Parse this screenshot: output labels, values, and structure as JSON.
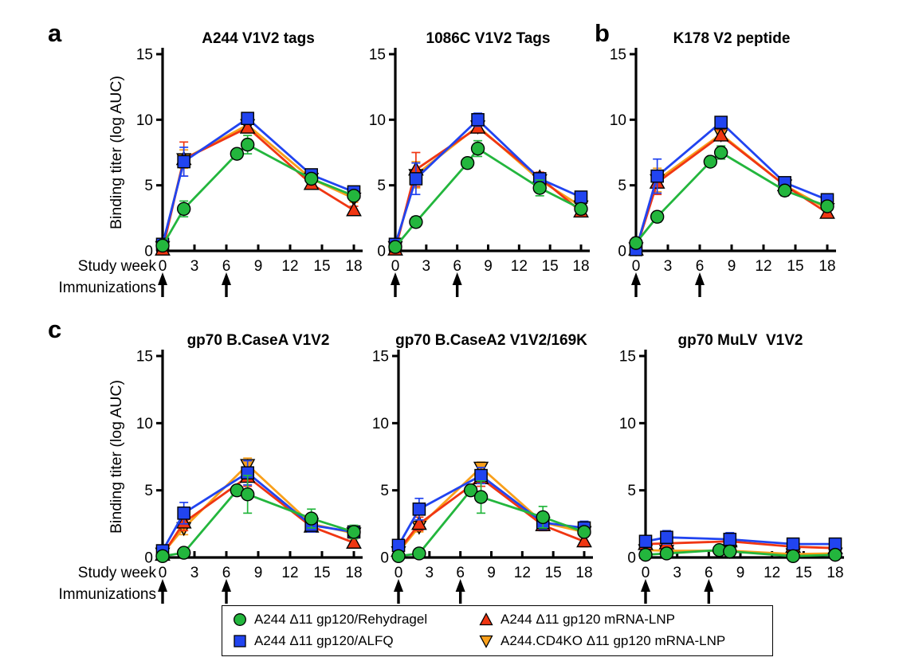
{
  "panels": [
    {
      "letter": "a"
    },
    {
      "letter": "b"
    },
    {
      "letter": "c"
    }
  ],
  "chart_data": {
    "type": "line",
    "ylabel": "Binding titer (log AUC)",
    "xlabel": "Study week",
    "immunizations": {
      "label": "Immunizations",
      "weeks": [
        0,
        6
      ]
    },
    "x_ticks": [
      0,
      3,
      6,
      9,
      12,
      15,
      18
    ],
    "y_ticks": [
      0,
      5,
      10,
      15
    ],
    "xlim": [
      0,
      18
    ],
    "ylim": [
      0,
      15
    ],
    "legend_position": "bottom",
    "grid": false,
    "series_meta": [
      {
        "label": "A244 Δ11 gp120/Rehydragel",
        "color": "#23B63D",
        "marker": "circle"
      },
      {
        "label": "A244 Δ11 gp120/ALFQ",
        "color": "#2144F0",
        "marker": "square"
      },
      {
        "label": "A244 Δ11 gp120 mRNA-LNP",
        "color": "#F03612",
        "marker": "triangle-up"
      },
      {
        "label": "A244.CD4KO Δ11 gp120 mRNA-LNP",
        "color": "#F9A01B",
        "marker": "triangle-down"
      }
    ],
    "plots": [
      {
        "panel": "a",
        "title": "A244 V1V2 tags",
        "show_ylabel": true,
        "row_labels": true,
        "data": [
          {
            "x": [
              0,
              2,
              7,
              8,
              14,
              18
            ],
            "y": [
              0.4,
              3.2,
              7.4,
              8.1,
              5.5,
              4.2
            ],
            "err": [
              0.25,
              0.6,
              0.3,
              0.7,
              0.35,
              0.3
            ]
          },
          {
            "x": [
              0,
              2,
              8,
              14,
              18
            ],
            "y": [
              0.5,
              6.8,
              10.1,
              5.8,
              4.5
            ],
            "err": [
              0.25,
              1.1,
              0.4,
              0.3,
              0.3
            ]
          },
          {
            "x": [
              0,
              2,
              8,
              14,
              18
            ],
            "y": [
              0.1,
              7.0,
              9.4,
              5.1,
              3.1
            ],
            "err": [
              0.2,
              1.3,
              0.4,
              0.3,
              0.3
            ]
          },
          {
            "x": [
              0,
              2,
              8,
              14,
              18
            ],
            "y": [
              0.3,
              7.0,
              9.6,
              5.5,
              4.0
            ],
            "err": [
              0.2,
              0.7,
              0.4,
              0.3,
              0.3
            ]
          }
        ]
      },
      {
        "panel": "a",
        "title": "1086C V1V2 Tags",
        "show_ylabel": false,
        "row_labels": false,
        "data": [
          {
            "x": [
              0,
              2,
              7,
              8,
              14,
              18
            ],
            "y": [
              0.3,
              2.2,
              6.7,
              7.8,
              4.8,
              3.2
            ],
            "err": [
              0.25,
              0.4,
              0.3,
              0.6,
              0.6,
              0.4
            ]
          },
          {
            "x": [
              0,
              2,
              8,
              14,
              18
            ],
            "y": [
              0.5,
              5.5,
              10.0,
              5.5,
              4.1
            ],
            "err": [
              0.25,
              1.2,
              0.5,
              0.4,
              0.4
            ]
          },
          {
            "x": [
              0,
              2,
              8,
              14,
              18
            ],
            "y": [
              0.1,
              6.2,
              9.4,
              5.6,
              3.0
            ],
            "err": [
              0.2,
              1.3,
              0.4,
              0.4,
              0.3
            ]
          },
          {
            "x": [
              0,
              2,
              8,
              14,
              18
            ],
            "y": [
              0.3,
              5.8,
              9.5,
              5.4,
              3.4
            ],
            "err": [
              0.2,
              1.0,
              0.4,
              0.4,
              0.3
            ]
          }
        ]
      },
      {
        "panel": "b",
        "title": "K178 V2 peptide",
        "show_ylabel": false,
        "row_labels": false,
        "data": [
          {
            "x": [
              0,
              2,
              7,
              8,
              14,
              18
            ],
            "y": [
              0.6,
              2.6,
              6.8,
              7.5,
              4.6,
              3.4
            ],
            "err": [
              0.3,
              0.4,
              0.3,
              0.5,
              0.4,
              0.3
            ]
          },
          {
            "x": [
              0,
              2,
              8,
              14,
              18
            ],
            "y": [
              0.1,
              5.7,
              9.8,
              5.2,
              3.9
            ],
            "err": [
              0.2,
              1.3,
              0.4,
              0.4,
              0.4
            ]
          },
          {
            "x": [
              0,
              2,
              8,
              14,
              18
            ],
            "y": [
              0.1,
              5.2,
              8.8,
              5.0,
              2.9
            ],
            "err": [
              0.2,
              0.9,
              0.4,
              0.4,
              0.3
            ]
          },
          {
            "x": [
              0,
              2,
              8,
              14,
              18
            ],
            "y": [
              0.2,
              5.4,
              8.9,
              5.0,
              3.2
            ],
            "err": [
              0.2,
              0.9,
              0.4,
              0.4,
              0.3
            ]
          }
        ]
      },
      {
        "panel": "c",
        "title": "gp70 B.CaseA V1V2",
        "show_ylabel": true,
        "row_labels": true,
        "data": [
          {
            "x": [
              0,
              2,
              7,
              8,
              14,
              18
            ],
            "y": [
              0.1,
              0.35,
              5.0,
              4.7,
              2.9,
              1.9
            ],
            "err": [
              0.15,
              0.2,
              0.3,
              1.4,
              0.7,
              0.5
            ]
          },
          {
            "x": [
              0,
              2,
              8,
              14,
              18
            ],
            "y": [
              0.5,
              3.3,
              6.3,
              2.4,
              1.9
            ],
            "err": [
              0.3,
              0.8,
              0.9,
              0.5,
              0.4
            ]
          },
          {
            "x": [
              0,
              2,
              8,
              14,
              18
            ],
            "y": [
              0.2,
              2.6,
              6.0,
              2.3,
              1.1
            ],
            "err": [
              0.2,
              0.6,
              0.7,
              0.4,
              0.3
            ]
          },
          {
            "x": [
              0,
              2,
              8,
              14,
              18
            ],
            "y": [
              0.3,
              2.2,
              6.9,
              2.5,
              1.8
            ],
            "err": [
              0.2,
              0.5,
              0.5,
              0.5,
              0.4
            ]
          }
        ]
      },
      {
        "panel": "c",
        "title": "gp70 B.CaseA2 V1V2/169K",
        "show_ylabel": false,
        "row_labels": false,
        "data": [
          {
            "x": [
              0,
              2,
              7,
              8,
              14,
              18
            ],
            "y": [
              0.1,
              0.3,
              5.0,
              4.5,
              3.0,
              1.9
            ],
            "err": [
              0.15,
              0.2,
              0.3,
              1.2,
              0.8,
              0.4
            ]
          },
          {
            "x": [
              0,
              2,
              8,
              14,
              18
            ],
            "y": [
              0.9,
              3.6,
              6.1,
              2.6,
              2.2
            ],
            "err": [
              0.4,
              0.8,
              0.6,
              0.5,
              0.5
            ]
          },
          {
            "x": [
              0,
              2,
              8,
              14,
              18
            ],
            "y": [
              0.5,
              2.5,
              5.9,
              2.4,
              1.2
            ],
            "err": [
              0.3,
              0.5,
              0.6,
              0.4,
              0.4
            ]
          },
          {
            "x": [
              0,
              2,
              8,
              14,
              18
            ],
            "y": [
              0.4,
              2.3,
              6.7,
              2.6,
              1.9
            ],
            "err": [
              0.2,
              0.4,
              0.4,
              0.5,
              0.4
            ]
          }
        ]
      },
      {
        "panel": "c",
        "title": "gp70 MuLV  V1V2",
        "show_ylabel": false,
        "row_labels": false,
        "data": [
          {
            "x": [
              0,
              2,
              7,
              8,
              14,
              18
            ],
            "y": [
              0.2,
              0.3,
              0.55,
              0.45,
              0.1,
              0.2
            ],
            "err": [
              0.1,
              0.1,
              0.15,
              0.1,
              0.1,
              0.1
            ]
          },
          {
            "x": [
              0,
              2,
              8,
              14,
              18
            ],
            "y": [
              1.2,
              1.5,
              1.35,
              1.0,
              1.0
            ],
            "err": [
              0.3,
              0.5,
              0.5,
              0.3,
              0.2
            ]
          },
          {
            "x": [
              0,
              2,
              8,
              14,
              18
            ],
            "y": [
              1.0,
              1.05,
              1.2,
              0.8,
              0.7
            ],
            "err": [
              0.4,
              0.3,
              0.6,
              0.2,
              0.2
            ]
          },
          {
            "x": [
              0,
              2,
              8,
              14,
              18
            ],
            "y": [
              0.55,
              0.5,
              0.5,
              0.25,
              0.3
            ],
            "err": [
              0.15,
              0.1,
              0.1,
              0.1,
              0.1
            ]
          }
        ]
      }
    ]
  }
}
